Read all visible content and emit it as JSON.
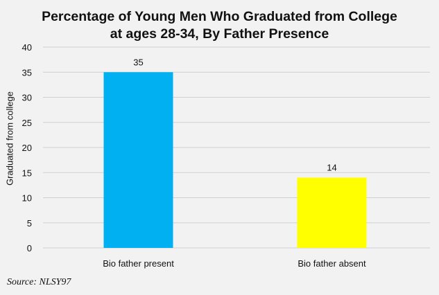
{
  "chart_data": {
    "type": "bar",
    "title_line1": "Percentage of Young Men Who Graduated from College",
    "title_line2": "at ages 28-34, By Father Presence",
    "ylabel": "Graduated from college",
    "xlabel": "",
    "categories": [
      "Bio father present",
      "Bio father absent"
    ],
    "values": [
      35,
      14
    ],
    "bar_colors": [
      "#00b0f0",
      "#ffff00"
    ],
    "ylim": [
      0,
      40
    ],
    "yticks": [
      0,
      5,
      10,
      15,
      20,
      25,
      30,
      35,
      40
    ],
    "grid": true,
    "data_labels": [
      "35",
      "14"
    ]
  },
  "source": "Source: NLSY97"
}
